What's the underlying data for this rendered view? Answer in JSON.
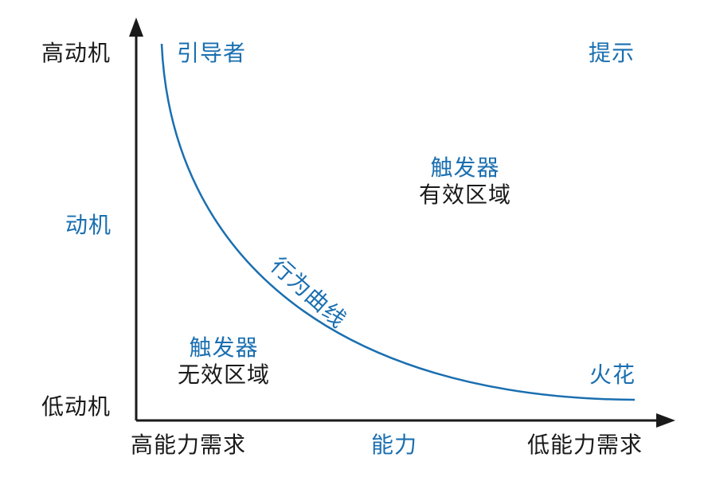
{
  "colors": {
    "accent": "#1a6fb0",
    "text": "#1a1a1a",
    "axis": "#1a1a1a"
  },
  "y_axis": {
    "top_label": "高动机",
    "mid_label": "动机",
    "bottom_label": "低动机"
  },
  "x_axis": {
    "left_label": "高能力需求",
    "mid_label": "能力",
    "right_label": "低能力需求"
  },
  "quadrants": {
    "top_left": "引导者",
    "top_right": "提示",
    "bottom_right": "火花"
  },
  "zones": {
    "valid": {
      "trigger": "触发器",
      "desc": "有效区域"
    },
    "invalid": {
      "trigger": "触发器",
      "desc": "无效区域"
    }
  },
  "curve_label": "行为曲线"
}
